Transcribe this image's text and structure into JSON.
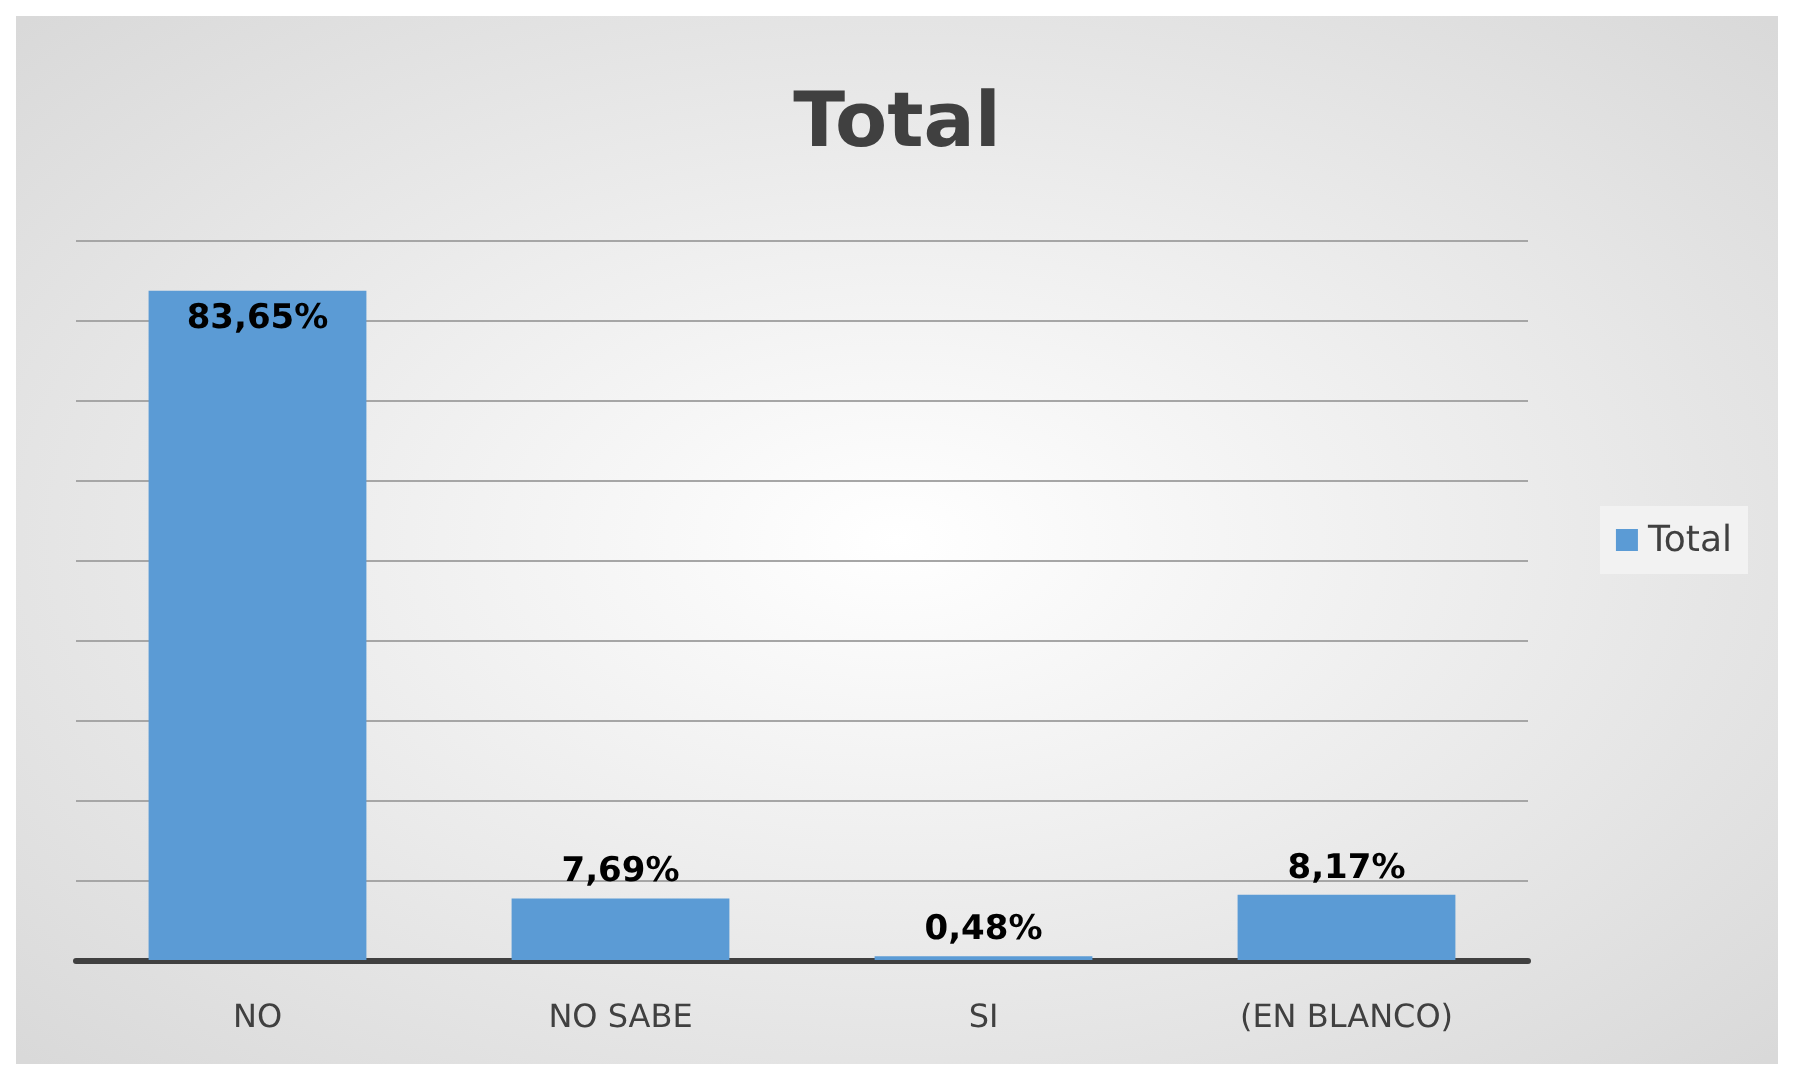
{
  "chart_data": {
    "type": "bar",
    "title": "Total",
    "categories": [
      "NO",
      "NO SABE",
      "SI",
      "(EN BLANCO)"
    ],
    "series": [
      {
        "name": "Total",
        "color": "#5b9bd5",
        "values": [
          83.65,
          7.69,
          0.48,
          8.17
        ],
        "value_labels": [
          "83,65%",
          "7,69%",
          "0,48%",
          "8,17%"
        ]
      }
    ],
    "ylim": [
      0,
      90
    ],
    "yticks": [
      {
        "value": 0,
        "label": null
      },
      {
        "value": 10,
        "label": null
      },
      {
        "value": 20,
        "label": null
      },
      {
        "value": 30,
        "label": null
      },
      {
        "value": 40,
        "label": null
      },
      {
        "value": 50,
        "label": null
      },
      {
        "value": 60,
        "label": null
      },
      {
        "value": 70,
        "label": null
      },
      {
        "value": 80,
        "label": null
      },
      {
        "value": 90,
        "label": null
      }
    ],
    "grid": "y",
    "legend": "right",
    "tick_labels": "x"
  }
}
